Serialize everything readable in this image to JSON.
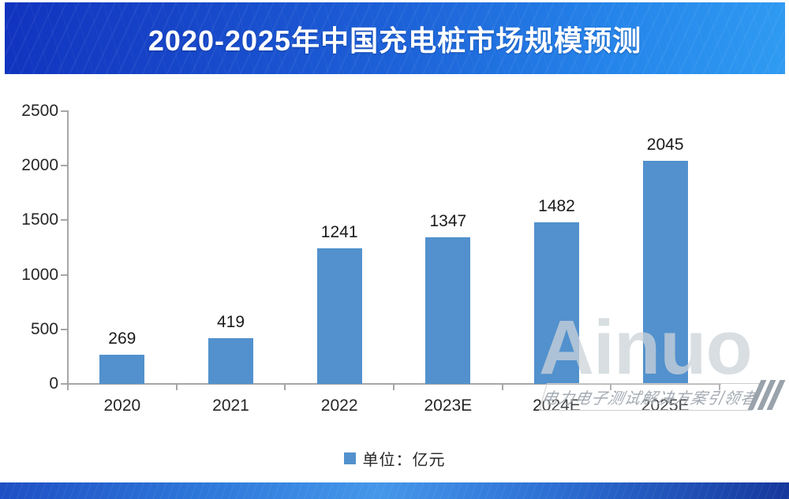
{
  "header": {
    "title": "2020-2025年中国充电桩市场规模预测"
  },
  "legend": {
    "label": "单位：亿元"
  },
  "watermark": {
    "brand": "Ainuo",
    "tagline": "电力电子测试解决方案引领者"
  },
  "colors": {
    "bar": "#5291cd",
    "axis": "#a6a6a6",
    "banner_left": "#1133bf",
    "banner_right": "#2f9bf2"
  },
  "chart_data": {
    "type": "bar",
    "title": "2020-2025年中国充电桩市场规模预测",
    "categories": [
      "2020",
      "2021",
      "2022",
      "2023E",
      "2024E",
      "2025E"
    ],
    "values": [
      269,
      419,
      1241,
      1347,
      1482,
      2045
    ],
    "series_name": "单位：亿元",
    "xlabel": "",
    "ylabel": "",
    "ylim": [
      0,
      2500
    ],
    "yticks": [
      0,
      500,
      1000,
      1500,
      2000,
      2500
    ],
    "grid": false,
    "data_labels": true,
    "legend_position": "bottom"
  }
}
